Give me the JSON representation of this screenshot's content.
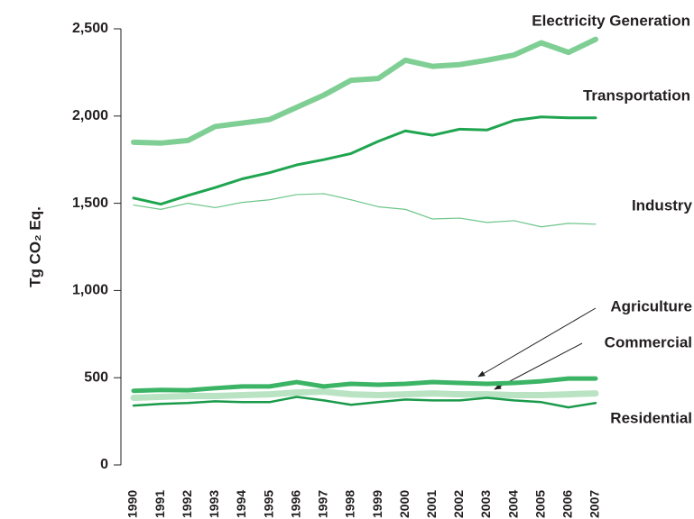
{
  "chart_data": {
    "type": "line",
    "ylabel": "Tg CO₂ Eq.",
    "categories": [
      "1990",
      "1991",
      "1992",
      "1993",
      "1994",
      "1995",
      "1996",
      "1997",
      "1998",
      "1999",
      "2000",
      "2001",
      "2002",
      "2003",
      "2004",
      "2005",
      "2006",
      "2007"
    ],
    "ylim": [
      0,
      2500
    ],
    "yticks": [
      0,
      500,
      {
        "value": 1000,
        "label": "1,000"
      },
      {
        "value": 1500,
        "label": "1,500"
      },
      {
        "value": 2000,
        "label": "2,000"
      },
      {
        "value": 2500,
        "label": "2,500"
      }
    ],
    "series": [
      {
        "name": "Electricity Generation",
        "color": "#7fcf95",
        "width": 6,
        "values": [
          1850,
          1845,
          1860,
          1940,
          1960,
          1980,
          2050,
          2120,
          2205,
          2215,
          2320,
          2285,
          2295,
          2320,
          2350,
          2420,
          2365,
          2440
        ]
      },
      {
        "name": "Transportation",
        "color": "#1fa550",
        "width": 3,
        "values": [
          1530,
          1495,
          1545,
          1590,
          1640,
          1675,
          1720,
          1750,
          1785,
          1855,
          1915,
          1890,
          1925,
          1920,
          1975,
          1995,
          1990,
          1990
        ]
      },
      {
        "name": "Industry",
        "color": "#6cc68a",
        "width": 1.2,
        "values": [
          1490,
          1465,
          1500,
          1475,
          1505,
          1520,
          1550,
          1555,
          1520,
          1480,
          1465,
          1410,
          1415,
          1390,
          1400,
          1365,
          1385,
          1380
        ]
      },
      {
        "name": "Agriculture",
        "color": "#3bb465",
        "width": 5,
        "values": [
          425,
          430,
          428,
          440,
          450,
          450,
          475,
          450,
          465,
          460,
          465,
          475,
          470,
          465,
          470,
          480,
          495,
          495
        ]
      },
      {
        "name": "Commercial",
        "color": "#b9e3c3",
        "width": 7,
        "values": [
          385,
          390,
          395,
          395,
          400,
          405,
          415,
          420,
          405,
          400,
          405,
          410,
          405,
          405,
          400,
          400,
          405,
          410
        ]
      },
      {
        "name": "Residential",
        "color": "#1a9a4a",
        "width": 2.5,
        "values": [
          340,
          350,
          355,
          365,
          360,
          360,
          390,
          370,
          345,
          360,
          375,
          370,
          370,
          385,
          370,
          360,
          330,
          355
        ]
      }
    ]
  }
}
